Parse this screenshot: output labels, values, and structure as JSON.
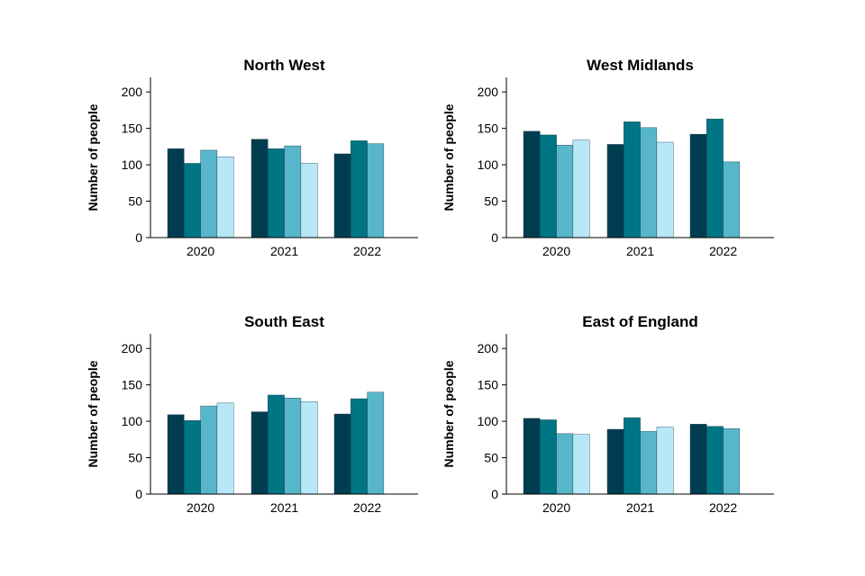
{
  "colors": [
    "#003d51",
    "#007586",
    "#58b6cb",
    "#b8e8f8"
  ],
  "chart_data": [
    {
      "type": "bar",
      "title": "North West",
      "ylabel": "Number of people",
      "ylim": [
        0,
        220
      ],
      "yticks": [
        0,
        50,
        100,
        150,
        200
      ],
      "categories": [
        "2020",
        "2021",
        "2022"
      ],
      "series": [
        {
          "values": [
            122,
            135,
            115
          ]
        },
        {
          "values": [
            102,
            122,
            133
          ]
        },
        {
          "values": [
            120,
            126,
            129
          ]
        },
        {
          "values": [
            111,
            102,
            null
          ]
        }
      ]
    },
    {
      "type": "bar",
      "title": "West Midlands",
      "ylabel": "Number of people",
      "ylim": [
        0,
        220
      ],
      "yticks": [
        0,
        50,
        100,
        150,
        200
      ],
      "categories": [
        "2020",
        "2021",
        "2022"
      ],
      "series": [
        {
          "values": [
            146,
            128,
            142
          ]
        },
        {
          "values": [
            141,
            159,
            163
          ]
        },
        {
          "values": [
            127,
            151,
            104
          ]
        },
        {
          "values": [
            134,
            131,
            null
          ]
        }
      ]
    },
    {
      "type": "bar",
      "title": "South East",
      "ylabel": "Number of people",
      "ylim": [
        0,
        220
      ],
      "yticks": [
        0,
        50,
        100,
        150,
        200
      ],
      "categories": [
        "2020",
        "2021",
        "2022"
      ],
      "series": [
        {
          "values": [
            109,
            113,
            110
          ]
        },
        {
          "values": [
            101,
            136,
            131
          ]
        },
        {
          "values": [
            121,
            132,
            140
          ]
        },
        {
          "values": [
            125,
            127,
            null
          ]
        }
      ]
    },
    {
      "type": "bar",
      "title": "East of England",
      "ylabel": "Number of people",
      "ylim": [
        0,
        220
      ],
      "yticks": [
        0,
        50,
        100,
        150,
        200
      ],
      "categories": [
        "2020",
        "2021",
        "2022"
      ],
      "series": [
        {
          "values": [
            104,
            89,
            96
          ]
        },
        {
          "values": [
            102,
            105,
            93
          ]
        },
        {
          "values": [
            83,
            86,
            90
          ]
        },
        {
          "values": [
            82,
            92,
            null
          ]
        }
      ]
    }
  ]
}
